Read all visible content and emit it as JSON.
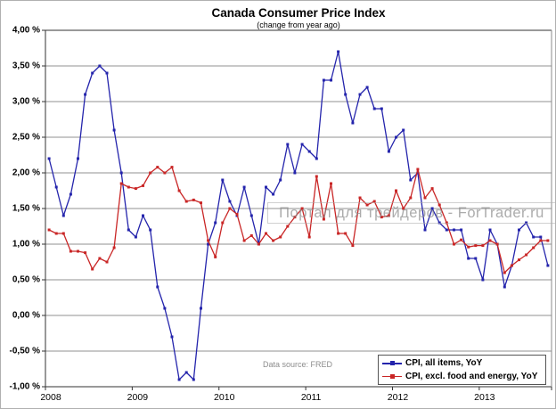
{
  "figure": {
    "title": "Canada Consumer Price Index",
    "subtitle": "(change from year ago)",
    "data_source_note": "Data source: FRED",
    "watermark": "Портал для трейдеров - ForTrader.ru"
  },
  "chart_data": {
    "type": "line",
    "title": "Canada Consumer Price Index",
    "subtitle": "(change from year ago)",
    "x_start": "2008-01",
    "x_end": "2013-10",
    "x_tick_labels": [
      "2008",
      "2009",
      "2010",
      "2011",
      "2012",
      "2013"
    ],
    "y_tick_labels": [
      "4,00 %",
      "3,50 %",
      "3,00 %",
      "2,50 %",
      "2,00 %",
      "1,50 %",
      "1,00 %",
      "0,50 %",
      "0,00 %",
      "-0,50 %",
      "-1,00 %"
    ],
    "ylim": [
      -1.0,
      4.0
    ],
    "y_step": 0.5,
    "grid": "horizontal",
    "legend_position": "bottom-right",
    "colors": {
      "grid": "#909090",
      "axis": "#333333",
      "plot_border": "#8a8a8a"
    },
    "series": [
      {
        "name": "CPI, all items, YoY",
        "color": "#2424ac",
        "values": [
          2.2,
          1.8,
          1.4,
          1.7,
          2.2,
          3.1,
          3.4,
          3.5,
          3.4,
          2.6,
          2.0,
          1.2,
          1.1,
          1.4,
          1.2,
          0.4,
          0.1,
          -0.3,
          -0.9,
          -0.8,
          -0.9,
          0.1,
          1.0,
          1.3,
          1.9,
          1.6,
          1.4,
          1.8,
          1.4,
          1.0,
          1.8,
          1.7,
          1.9,
          2.4,
          2.0,
          2.4,
          2.3,
          2.2,
          3.3,
          3.3,
          3.7,
          3.1,
          2.7,
          3.1,
          3.2,
          2.9,
          2.9,
          2.3,
          2.5,
          2.6,
          1.9,
          2.0,
          1.2,
          1.5,
          1.3,
          1.2,
          1.2,
          1.2,
          0.8,
          0.8,
          0.5,
          1.2,
          1.0,
          0.4,
          0.7,
          1.2,
          1.3,
          1.1,
          1.1,
          0.7
        ]
      },
      {
        "name": "CPI, excl. food and energy, YoY",
        "color": "#c92626",
        "values": [
          1.2,
          1.15,
          1.15,
          0.9,
          0.9,
          0.88,
          0.65,
          0.8,
          0.75,
          0.95,
          1.85,
          1.8,
          1.78,
          1.82,
          2.0,
          2.08,
          2.0,
          2.08,
          1.75,
          1.6,
          1.62,
          1.58,
          1.05,
          0.82,
          1.3,
          1.5,
          1.42,
          1.05,
          1.12,
          1.0,
          1.15,
          1.05,
          1.1,
          1.25,
          1.38,
          1.5,
          1.1,
          1.95,
          1.35,
          1.85,
          1.15,
          1.15,
          0.98,
          1.65,
          1.55,
          1.6,
          1.38,
          1.4,
          1.75,
          1.5,
          1.65,
          2.05,
          1.65,
          1.78,
          1.55,
          1.3,
          1.0,
          1.06,
          0.96,
          0.98,
          0.98,
          1.05,
          1.0,
          0.6,
          0.7,
          0.78,
          0.85,
          0.95,
          1.05,
          1.05
        ]
      }
    ]
  }
}
